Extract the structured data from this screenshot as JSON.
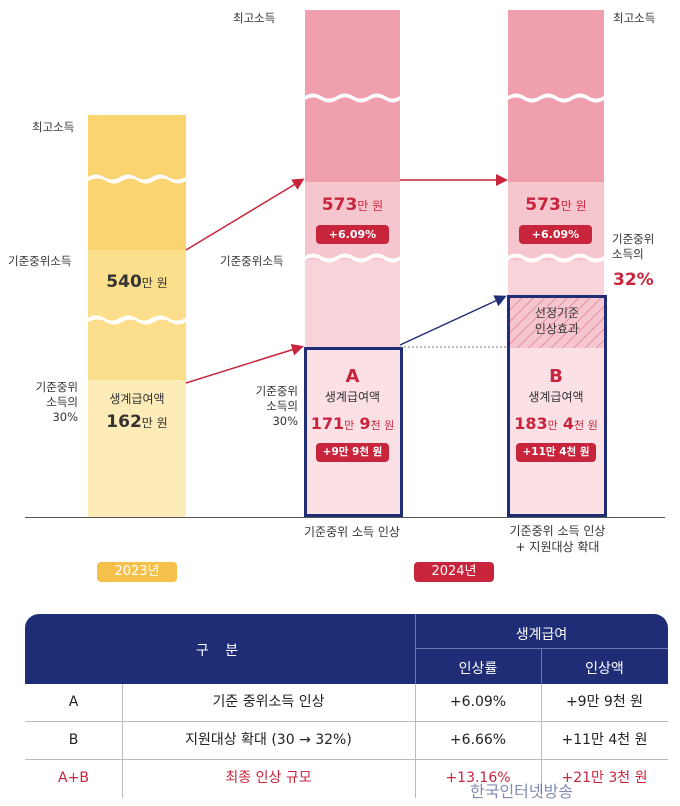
{
  "chart_data": {
    "type": "bar",
    "categories": [
      "2023년",
      "2024년 (A)",
      "2024년 (B)"
    ],
    "series": [
      {
        "values": [
          540,
          573,
          573
        ]
      },
      {
        "values": [
          162,
          171.9,
          183.4
        ]
      }
    ],
    "years": {
      "y2023": "2023년",
      "y2024": "2024년"
    },
    "level_labels": {
      "top_income": "최고소득",
      "median_income": "기준중위소득",
      "median_pct": [
        "기준중위",
        "소득의",
        "30%"
      ],
      "median_32": [
        "기준중위",
        "소득의"
      ],
      "median_32_value": "32%"
    },
    "col2023": {
      "median_amount_num": "540",
      "median_amount_unit": "만 원",
      "benefit_title": "생계급여액",
      "benefit_num": "162",
      "benefit_unit": "만 원"
    },
    "colA": {
      "median_amount_num": "573",
      "median_amount_unit": "만 원",
      "median_pill": "+6.09%",
      "letter": "A",
      "benefit_title": "생계급여액",
      "benefit_n1": "171",
      "benefit_u1": "만",
      "benefit_n2": "9",
      "benefit_u2": "천 원",
      "benefit_pill": "+9만 9천 원",
      "caption": "기준중위 소득 인상"
    },
    "colB": {
      "median_amount_num": "573",
      "median_amount_unit": "만 원",
      "median_pill": "+6.09%",
      "selection_effect": [
        "선정기준",
        "인상효과"
      ],
      "letter": "B",
      "benefit_title": "생계급여액",
      "benefit_n1": "183",
      "benefit_u1": "만",
      "benefit_n2": "4",
      "benefit_u2": "천 원",
      "benefit_pill": "+11만 4천 원",
      "caption": [
        "기준중위 소득 인상",
        "+ 지원대상 확대"
      ]
    },
    "colors": {
      "yellow_dark": "#fbd472",
      "yellow_light": "#fde9b3",
      "pink_dark": "#ef9fad",
      "pink_mid": "#f6c6cf",
      "pink_light": "#fbe0e5",
      "red": "#c8243c",
      "navy": "#1f2d77",
      "year_2023": "#f6c14a",
      "year_2024": "#c8243c"
    }
  },
  "table": {
    "header_gubun": "구 분",
    "header_group": "생계급여",
    "header_rate": "인상률",
    "header_amount": "인상액",
    "rows": [
      {
        "label": "A",
        "desc": "기준 중위소득 인상",
        "rate": "+6.09%",
        "amount": "+9만 9천 원"
      },
      {
        "label": "B",
        "desc": "지원대상 확대 (30 → 32%)",
        "rate": "+6.66%",
        "amount": "+11만 4천 원"
      },
      {
        "label": "A+B",
        "desc": "최종 인상 규모",
        "rate": "+13.16%",
        "amount": "+21만 3천 원"
      }
    ]
  },
  "watermark": "한국인터넷방송"
}
